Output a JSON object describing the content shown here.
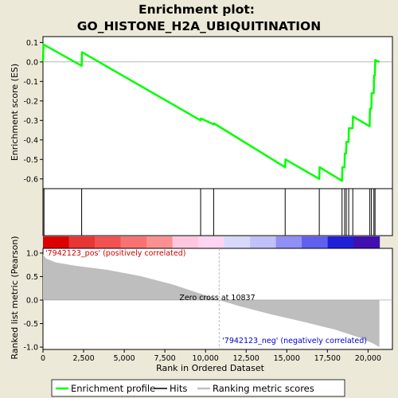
{
  "chart_data": {
    "type": "line",
    "title_line1": "Enrichment plot:",
    "title_line2": "GO_HISTONE_H2A_UBIQUITINATION",
    "es_panel": {
      "ylabel": "Enrichment score (ES)",
      "ylim": [
        -0.65,
        0.13
      ],
      "yticks": [
        -0.6,
        -0.5,
        -0.4,
        -0.3,
        -0.2,
        -0.1,
        0.0,
        0.1
      ],
      "ytick_labels": [
        "-0.6",
        "-0.5",
        "-0.4",
        "-0.3",
        "-0.2",
        "-0.1",
        "0.0",
        "0.1"
      ],
      "series_name": "Enrichment profile",
      "color": "#00ff00",
      "points": [
        [
          0,
          0.0
        ],
        [
          30,
          0.09
        ],
        [
          2380,
          -0.02
        ],
        [
          2400,
          0.05
        ],
        [
          9700,
          -0.3
        ],
        [
          9720,
          -0.29
        ],
        [
          10500,
          -0.32
        ],
        [
          10520,
          -0.315
        ],
        [
          14900,
          -0.54
        ],
        [
          14920,
          -0.5
        ],
        [
          17000,
          -0.6
        ],
        [
          17020,
          -0.54
        ],
        [
          18400,
          -0.61
        ],
        [
          18420,
          -0.54
        ],
        [
          18550,
          -0.54
        ],
        [
          18570,
          -0.47
        ],
        [
          18650,
          -0.47
        ],
        [
          18670,
          -0.41
        ],
        [
          18800,
          -0.41
        ],
        [
          18820,
          -0.34
        ],
        [
          19050,
          -0.34
        ],
        [
          19070,
          -0.28
        ],
        [
          20100,
          -0.33
        ],
        [
          20120,
          -0.24
        ],
        [
          20200,
          -0.24
        ],
        [
          20220,
          -0.16
        ],
        [
          20350,
          -0.16
        ],
        [
          20370,
          -0.07
        ],
        [
          20420,
          -0.07
        ],
        [
          20440,
          0.01
        ],
        [
          20700,
          0.0
        ]
      ]
    },
    "hits": {
      "name": "Hits",
      "positions": [
        60,
        2380,
        9700,
        10500,
        14900,
        17000,
        18400,
        18560,
        18660,
        18810,
        19060,
        20110,
        20210,
        20360,
        20430
      ]
    },
    "colorbar": {
      "colors": [
        "#dd0000",
        "#e83535",
        "#f25252",
        "#f87272",
        "#fc9090",
        "#ffc6e0",
        "#ffd4f0",
        "#d8d8fc",
        "#c0c0fa",
        "#8f8ff6",
        "#6060f0",
        "#2020d8",
        "#4010b0"
      ]
    },
    "metric_panel": {
      "ylabel": "Ranked list metric (Pearson)",
      "ylim": [
        -1.05,
        1.1
      ],
      "yticks": [
        -1.0,
        -0.5,
        0.0,
        0.5,
        1.0
      ],
      "ytick_labels": [
        "-1.0",
        "-0.5",
        "0.0",
        "0.5",
        "1.0"
      ],
      "series_name": "Ranking metric scores",
      "curve": [
        [
          0,
          0.97
        ],
        [
          200,
          0.88
        ],
        [
          800,
          0.8
        ],
        [
          2000,
          0.73
        ],
        [
          4000,
          0.64
        ],
        [
          6000,
          0.51
        ],
        [
          8000,
          0.33
        ],
        [
          10000,
          0.1
        ],
        [
          10837,
          0.0
        ],
        [
          12000,
          -0.12
        ],
        [
          14000,
          -0.3
        ],
        [
          16000,
          -0.46
        ],
        [
          18000,
          -0.63
        ],
        [
          19500,
          -0.8
        ],
        [
          20300,
          -0.92
        ],
        [
          20700,
          -1.0
        ]
      ],
      "zero_cross_label": "Zero cross at 10837",
      "zero_cross": 10837,
      "pos_label": "'7942123_pos' (positively correlated)",
      "neg_label": "'7942123_neg' (negatively correlated)"
    },
    "x_axis": {
      "xlabel": "Rank in Ordered Dataset",
      "xlim": [
        0,
        21500
      ],
      "xticks": [
        0,
        2500,
        5000,
        7500,
        10000,
        12500,
        15000,
        17500,
        20000
      ],
      "xtick_labels": [
        "0",
        "2,500",
        "5,000",
        "7,500",
        "10,000",
        "12,500",
        "15,000",
        "17,500",
        "20,000"
      ],
      "max_rank": 20700
    },
    "legend": {
      "placement": "bottom",
      "items": [
        "Enrichment profile",
        "Hits",
        "Ranking metric scores"
      ]
    }
  }
}
